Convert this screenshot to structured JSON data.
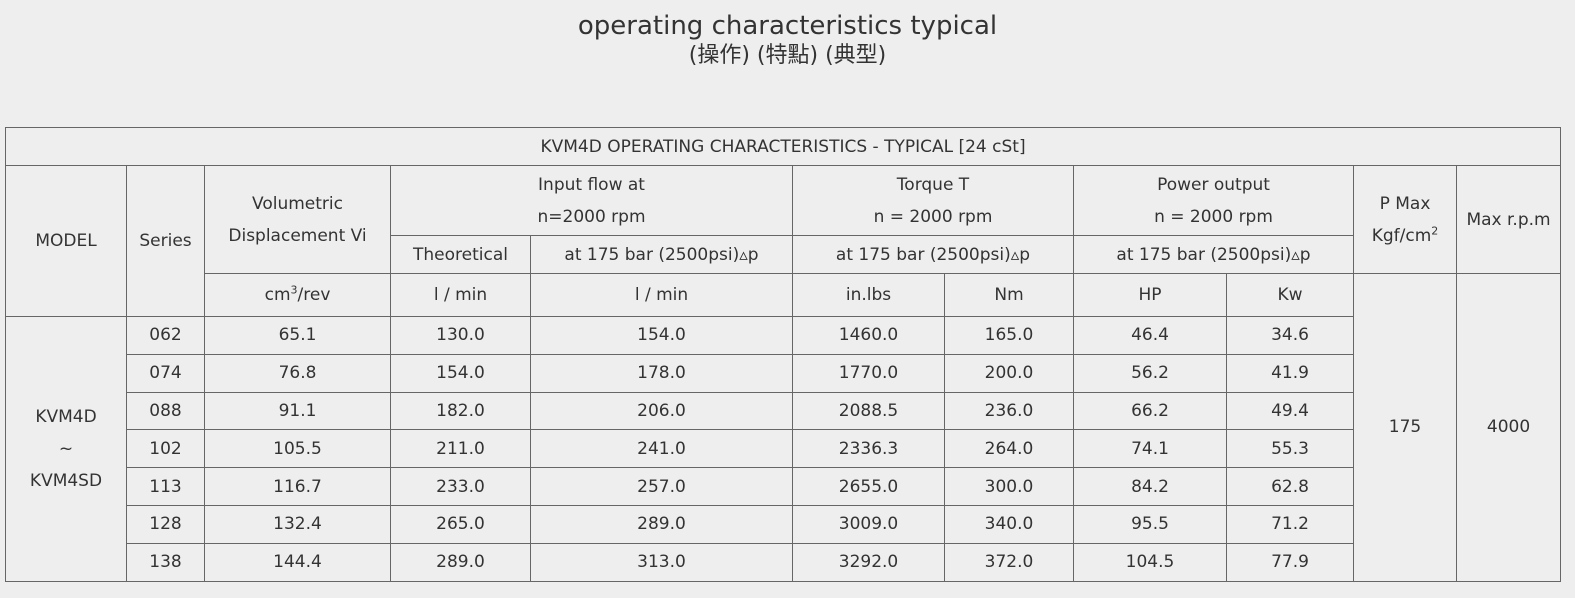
{
  "header": {
    "title": "operating characteristics typical",
    "subtitle": "(操作) (特點) (典型)"
  },
  "table": {
    "caption": "KVM4D OPERATING CHARACTERISTICS - TYPICAL [24 cSt]",
    "headers": {
      "model": "MODEL",
      "series": "Series",
      "displacement": [
        "Volumetric",
        "Displacement Vi"
      ],
      "input_flow": [
        "Input flow at",
        "n=2000 rpm"
      ],
      "torque": [
        "Torque T",
        "n = 2000 rpm"
      ],
      "power": [
        "Power output",
        "n = 2000 rpm"
      ],
      "p_max": {
        "line1": "P Max",
        "base": "Kgf/cm",
        "sup": "2"
      },
      "max_rpm": "Max r.p.m",
      "theoretical": "Theoretical",
      "input_condition": "at 175 bar (2500psi)▵p",
      "torque_condition": "at 175 bar (2500psi)▵p",
      "power_condition": "at 175 bar (2500psi)▵p"
    },
    "units": {
      "displacement": {
        "base": "cm",
        "sup": "3",
        "rest": "/rev"
      },
      "theoretical": "l / min",
      "input_flow": "l / min",
      "torque_imperial": "in.lbs",
      "torque_metric": "Nm",
      "power_imperial": "HP",
      "power_metric": "Kw"
    },
    "model": [
      "KVM4D",
      "~",
      "KVM4SD"
    ],
    "p_max": 175,
    "max_rpm": 4000,
    "rows": [
      [
        "062",
        "65.1",
        "130.0",
        "154.0",
        "1460.0",
        "165.0",
        "46.4",
        "34.6"
      ],
      [
        "074",
        "76.8",
        "154.0",
        "178.0",
        "1770.0",
        "200.0",
        "56.2",
        "41.9"
      ],
      [
        "088",
        "91.1",
        "182.0",
        "206.0",
        "2088.5",
        "236.0",
        "66.2",
        "49.4"
      ],
      [
        "102",
        "105.5",
        "211.0",
        "241.0",
        "2336.3",
        "264.0",
        "74.1",
        "55.3"
      ],
      [
        "113",
        "116.7",
        "233.0",
        "257.0",
        "2655.0",
        "300.0",
        "84.2",
        "62.8"
      ],
      [
        "128",
        "132.4",
        "265.0",
        "289.0",
        "3009.0",
        "340.0",
        "95.5",
        "71.2"
      ],
      [
        "138",
        "144.4",
        "289.0",
        "313.0",
        "3292.0",
        "372.0",
        "104.5",
        "77.9"
      ]
    ]
  }
}
